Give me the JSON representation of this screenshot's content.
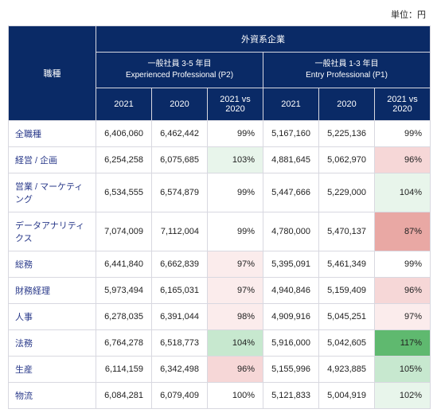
{
  "unit_label": "単位：円",
  "header": {
    "group_top": "外資系企業",
    "row_header": "職種",
    "group_a_line1": "一般社員  3-5 年目",
    "group_a_line2": "Experienced Professional (P2)",
    "group_b_line1": "一般社員  1-3 年目",
    "group_b_line2": "Entry Professional (P1)",
    "col_2021": "2021",
    "col_2020": "2020",
    "col_ratio": "2021 vs 2020"
  },
  "rows": [
    {
      "label": "全職種",
      "a21": "6,406,060",
      "a20": "6,462,442",
      "ar": "99%",
      "ac": "",
      "b21": "5,167,160",
      "b20": "5,225,136",
      "br": "99%",
      "bc": ""
    },
    {
      "label": "経営 / 企画",
      "a21": "6,254,258",
      "a20": "6,075,685",
      "ar": "103%",
      "ac": "g1",
      "b21": "4,881,645",
      "b20": "5,062,970",
      "br": "96%",
      "bc": "r2"
    },
    {
      "label": "営業 / マーケティング",
      "a21": "6,534,555",
      "a20": "6,574,879",
      "ar": "99%",
      "ac": "",
      "b21": "5,447,666",
      "b20": "5,229,000",
      "br": "104%",
      "bc": "g1"
    },
    {
      "label": "データアナリティクス",
      "a21": "7,074,009",
      "a20": "7,112,004",
      "ar": "99%",
      "ac": "",
      "b21": "4,780,000",
      "b20": "5,470,137",
      "br": "87%",
      "bc": "r3"
    },
    {
      "label": "総務",
      "a21": "6,441,840",
      "a20": "6,662,839",
      "ar": "97%",
      "ac": "r1",
      "b21": "5,395,091",
      "b20": "5,461,349",
      "br": "99%",
      "bc": ""
    },
    {
      "label": "財務経理",
      "a21": "5,973,494",
      "a20": "6,165,031",
      "ar": "97%",
      "ac": "r1",
      "b21": "4,940,846",
      "b20": "5,159,409",
      "br": "96%",
      "bc": "r2"
    },
    {
      "label": "人事",
      "a21": "6,278,035",
      "a20": "6,391,044",
      "ar": "98%",
      "ac": "r1",
      "b21": "4,909,916",
      "b20": "5,045,251",
      "br": "97%",
      "bc": "r1"
    },
    {
      "label": "法務",
      "a21": "6,764,278",
      "a20": "6,518,773",
      "ar": "104%",
      "ac": "g2",
      "b21": "5,916,000",
      "b20": "5,042,605",
      "br": "117%",
      "bc": "g3"
    },
    {
      "label": "生産",
      "a21": "6,114,159",
      "a20": "6,342,498",
      "ar": "96%",
      "ac": "r2",
      "b21": "5,155,996",
      "b20": "4,923,885",
      "br": "105%",
      "bc": "g2"
    },
    {
      "label": "物流",
      "a21": "6,084,281",
      "a20": "6,079,409",
      "ar": "100%",
      "ac": "",
      "b21": "5,121,833",
      "b20": "5,004,919",
      "br": "102%",
      "bc": "g1"
    }
  ]
}
